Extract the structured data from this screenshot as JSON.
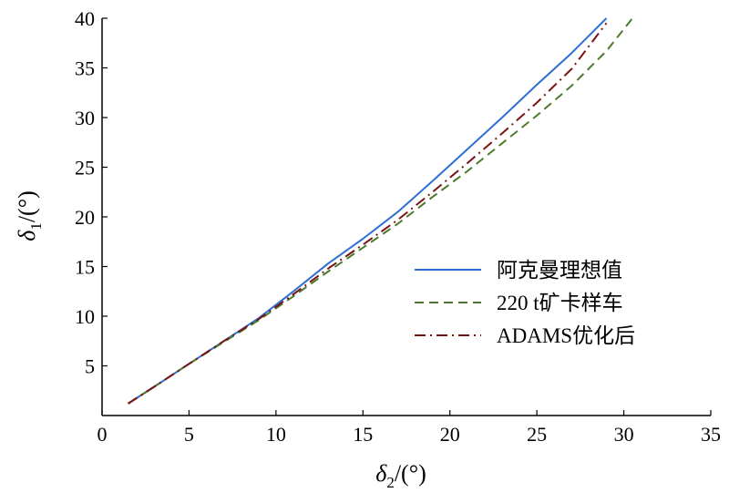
{
  "chart_data": {
    "type": "line",
    "xlabel": {
      "symbol": "δ",
      "subscript": "2",
      "unit": "/(°)"
    },
    "ylabel": {
      "symbol": "δ",
      "subscript": "1",
      "unit": "/(°)"
    },
    "xlim": [
      0,
      35
    ],
    "ylim": [
      0,
      40
    ],
    "xticks": [
      0,
      5,
      10,
      15,
      20,
      25,
      30,
      35
    ],
    "yticks": [
      5,
      10,
      15,
      20,
      25,
      30,
      35,
      40
    ],
    "grid": false,
    "legend_position": "bottom-right",
    "series": [
      {
        "name": "阿克曼理想值",
        "color": "#2e6fd6",
        "dash": "solid",
        "x": [
          1.5,
          3,
          5,
          7,
          9,
          11,
          13,
          15,
          17,
          19,
          21,
          23,
          25,
          27,
          29
        ],
        "y": [
          1.2,
          2.9,
          5.2,
          7.5,
          9.8,
          12.5,
          15.3,
          17.8,
          20.5,
          23.6,
          26.8,
          30,
          33.3,
          36.5,
          40
        ]
      },
      {
        "name": "220 t矿卡样车",
        "color": "#4a7a2a",
        "dash": "dashed",
        "x": [
          1.5,
          3,
          5,
          7,
          9,
          11,
          13,
          15,
          17,
          19,
          21,
          23,
          25,
          27,
          29,
          30.5
        ],
        "y": [
          1.2,
          2.9,
          5.2,
          7.4,
          9.6,
          12,
          14.5,
          16.9,
          19.3,
          22,
          24.6,
          27.4,
          30.2,
          33.2,
          36.7,
          40
        ]
      },
      {
        "name": "ADAMS优化后",
        "color": "#7a1414",
        "dash": "dashdot",
        "x": [
          1.5,
          3,
          5,
          7,
          9,
          11,
          13,
          15,
          17,
          19,
          21,
          23,
          25,
          27,
          29
        ],
        "y": [
          1.2,
          2.9,
          5.2,
          7.5,
          9.7,
          12.2,
          14.8,
          17.2,
          19.7,
          22.5,
          25.4,
          28.4,
          31.5,
          34.9,
          39.5
        ]
      }
    ]
  }
}
